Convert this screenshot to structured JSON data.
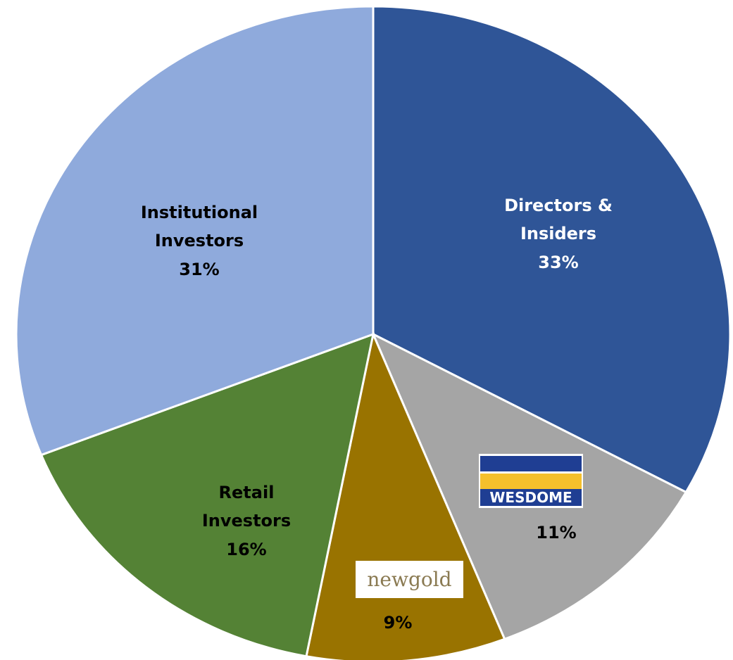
{
  "chart_data": {
    "type": "pie",
    "categories": [
      "Directors & Insiders",
      "WESDOME",
      "newgold",
      "Retail Investors",
      "Institutional Investors"
    ],
    "values": [
      33,
      11,
      9,
      16,
      31
    ],
    "value_labels": [
      "33%",
      "11%",
      "9%",
      "16%",
      "31%"
    ],
    "colors": [
      "#2f5597",
      "#a5a5a5",
      "#997300",
      "#548235",
      "#8faadc"
    ]
  }
}
